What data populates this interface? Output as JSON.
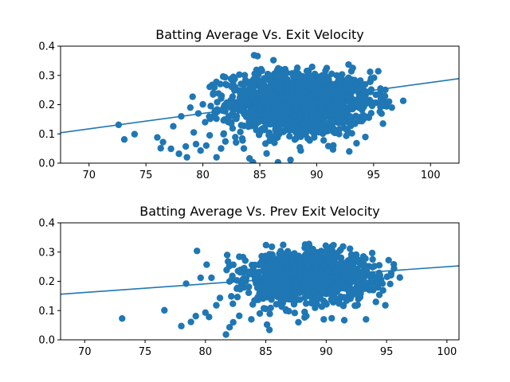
{
  "chart_data": [
    {
      "type": "scatter",
      "title": "Batting Average Vs. Exit Velocity",
      "xlabel": "",
      "ylabel": "",
      "xlim": [
        67.5,
        102.5
      ],
      "ylim": [
        0.0,
        0.4
      ],
      "xticks": [
        70,
        75,
        80,
        85,
        90,
        95,
        100
      ],
      "yticks": [
        0.0,
        0.1,
        0.2,
        0.3,
        0.4
      ],
      "color": "#1f77b4",
      "trendline": {
        "x": [
          67.5,
          102.5
        ],
        "y": [
          0.104,
          0.289
        ]
      },
      "cluster": {
        "center": [
          88.5,
          0.205
        ],
        "spread": [
          3.2,
          0.055
        ],
        "count": 1400,
        "x_range": [
          80.5,
          96.5
        ]
      },
      "points": [
        [
          72.6,
          0.131
        ],
        [
          73.1,
          0.081
        ],
        [
          74.0,
          0.099
        ],
        [
          76.0,
          0.088
        ],
        [
          76.3,
          0.051
        ],
        [
          76.5,
          0.072
        ],
        [
          77.2,
          0.049
        ],
        [
          77.4,
          0.126
        ],
        [
          77.9,
          0.032
        ],
        [
          78.1,
          0.16
        ],
        [
          78.5,
          0.057
        ],
        [
          78.6,
          0.02
        ],
        [
          78.9,
          0.19
        ],
        [
          79.1,
          0.227
        ],
        [
          79.2,
          0.105
        ],
        [
          79.4,
          0.065
        ],
        [
          79.6,
          0.17
        ],
        [
          79.8,
          0.043
        ],
        [
          80.0,
          0.201
        ],
        [
          80.2,
          0.14
        ],
        [
          80.3,
          0.06
        ],
        [
          80.6,
          0.095
        ],
        [
          80.9,
          0.235
        ],
        [
          81.2,
          0.02
        ],
        [
          81.6,
          0.05
        ],
        [
          82.0,
          0.27
        ],
        [
          82.8,
          0.288
        ],
        [
          83.6,
          0.05
        ],
        [
          84.1,
          0.016
        ],
        [
          84.4,
          0.003
        ],
        [
          84.5,
          0.369
        ],
        [
          84.8,
          0.366
        ],
        [
          85.6,
          0.033
        ],
        [
          86.2,
          0.352
        ],
        [
          86.6,
          0.003
        ],
        [
          87.7,
          0.011
        ],
        [
          88.3,
          0.326
        ],
        [
          88.6,
          0.043
        ],
        [
          89.6,
          0.329
        ],
        [
          92.8,
          0.337
        ],
        [
          93.5,
          0.068
        ],
        [
          94.7,
          0.278
        ],
        [
          95.6,
          0.255
        ],
        [
          96.0,
          0.229
        ],
        [
          96.6,
          0.19
        ],
        [
          97.6,
          0.213
        ],
        [
          95.0,
          0.206
        ],
        [
          94.2,
          0.16
        ],
        [
          92.1,
          0.283
        ],
        [
          90.5,
          0.3
        ]
      ]
    },
    {
      "type": "scatter",
      "title": "Batting Average Vs. Prev Exit Velocity",
      "xlabel": "",
      "ylabel": "",
      "xlim": [
        68.0,
        101.0
      ],
      "ylim": [
        0.0,
        0.4
      ],
      "xticks": [
        70,
        75,
        80,
        85,
        90,
        95,
        100
      ],
      "yticks": [
        0.0,
        0.1,
        0.2,
        0.3,
        0.4
      ],
      "color": "#1f77b4",
      "trendline": {
        "x": [
          68.0,
          101.0
        ],
        "y": [
          0.156,
          0.253
        ]
      },
      "cluster": {
        "center": [
          88.5,
          0.215
        ],
        "spread": [
          2.6,
          0.045
        ],
        "count": 1200,
        "x_range": [
          81.5,
          95.8
        ]
      },
      "points": [
        [
          73.1,
          0.073
        ],
        [
          76.6,
          0.101
        ],
        [
          78.0,
          0.047
        ],
        [
          78.4,
          0.192
        ],
        [
          78.8,
          0.061
        ],
        [
          79.2,
          0.081
        ],
        [
          79.3,
          0.304
        ],
        [
          79.6,
          0.212
        ],
        [
          80.0,
          0.093
        ],
        [
          80.1,
          0.257
        ],
        [
          80.3,
          0.078
        ],
        [
          80.5,
          0.212
        ],
        [
          80.9,
          0.118
        ],
        [
          81.2,
          0.143
        ],
        [
          81.7,
          0.018
        ],
        [
          81.8,
          0.29
        ],
        [
          82.0,
          0.043
        ],
        [
          82.3,
          0.06
        ],
        [
          82.6,
          0.175
        ],
        [
          82.8,
          0.082
        ],
        [
          83.3,
          0.271
        ],
        [
          83.8,
          0.07
        ],
        [
          84.5,
          0.09
        ],
        [
          85.1,
          0.052
        ],
        [
          85.3,
          0.034
        ],
        [
          85.5,
          0.318
        ],
        [
          86.9,
          0.098
        ],
        [
          87.7,
          0.06
        ],
        [
          88.9,
          0.31
        ],
        [
          89.8,
          0.07
        ],
        [
          90.0,
          0.303
        ],
        [
          91.4,
          0.319
        ],
        [
          91.5,
          0.067
        ],
        [
          93.3,
          0.07
        ],
        [
          94.0,
          0.252
        ],
        [
          94.9,
          0.118
        ],
        [
          95.6,
          0.258
        ],
        [
          96.1,
          0.213
        ],
        [
          95.3,
          0.191
        ],
        [
          92.5,
          0.289
        ]
      ]
    }
  ]
}
